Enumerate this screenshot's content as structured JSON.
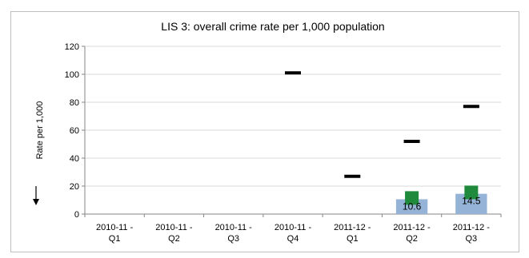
{
  "chart_data": {
    "type": "bar",
    "title": "LIS 3: overall crime rate per 1,000 population",
    "ylabel": "Rate per 1,000",
    "xlabel": "",
    "ylim": [
      0,
      120
    ],
    "yticks": [
      0,
      20,
      40,
      60,
      80,
      100,
      120
    ],
    "grid": true,
    "legend": "none",
    "categories": [
      [
        "2010-11 -",
        "Q1"
      ],
      [
        "2010-11 -",
        "Q2"
      ],
      [
        "2010-11 -",
        "Q3"
      ],
      [
        "2010-11 -",
        "Q4"
      ],
      [
        "2011-12 -",
        "Q1"
      ],
      [
        "2011-12 -",
        "Q2"
      ],
      [
        "2011-12 -",
        "Q3"
      ]
    ],
    "series": [
      {
        "type": "bar",
        "color": "#95b3d7",
        "values": [
          null,
          null,
          null,
          null,
          null,
          10.6,
          14.5
        ],
        "data_labels": [
          "",
          "",
          "",
          "",
          "",
          "10.6",
          "14.5"
        ]
      },
      {
        "type": "marker-square",
        "color": "#1f8a3b",
        "values": [
          null,
          null,
          null,
          null,
          null,
          11.5,
          15.5
        ]
      },
      {
        "type": "marker-dash",
        "color": "#000000",
        "values": [
          null,
          null,
          null,
          101,
          27,
          52,
          77
        ]
      }
    ],
    "direction_indicator": "down-arrow"
  }
}
